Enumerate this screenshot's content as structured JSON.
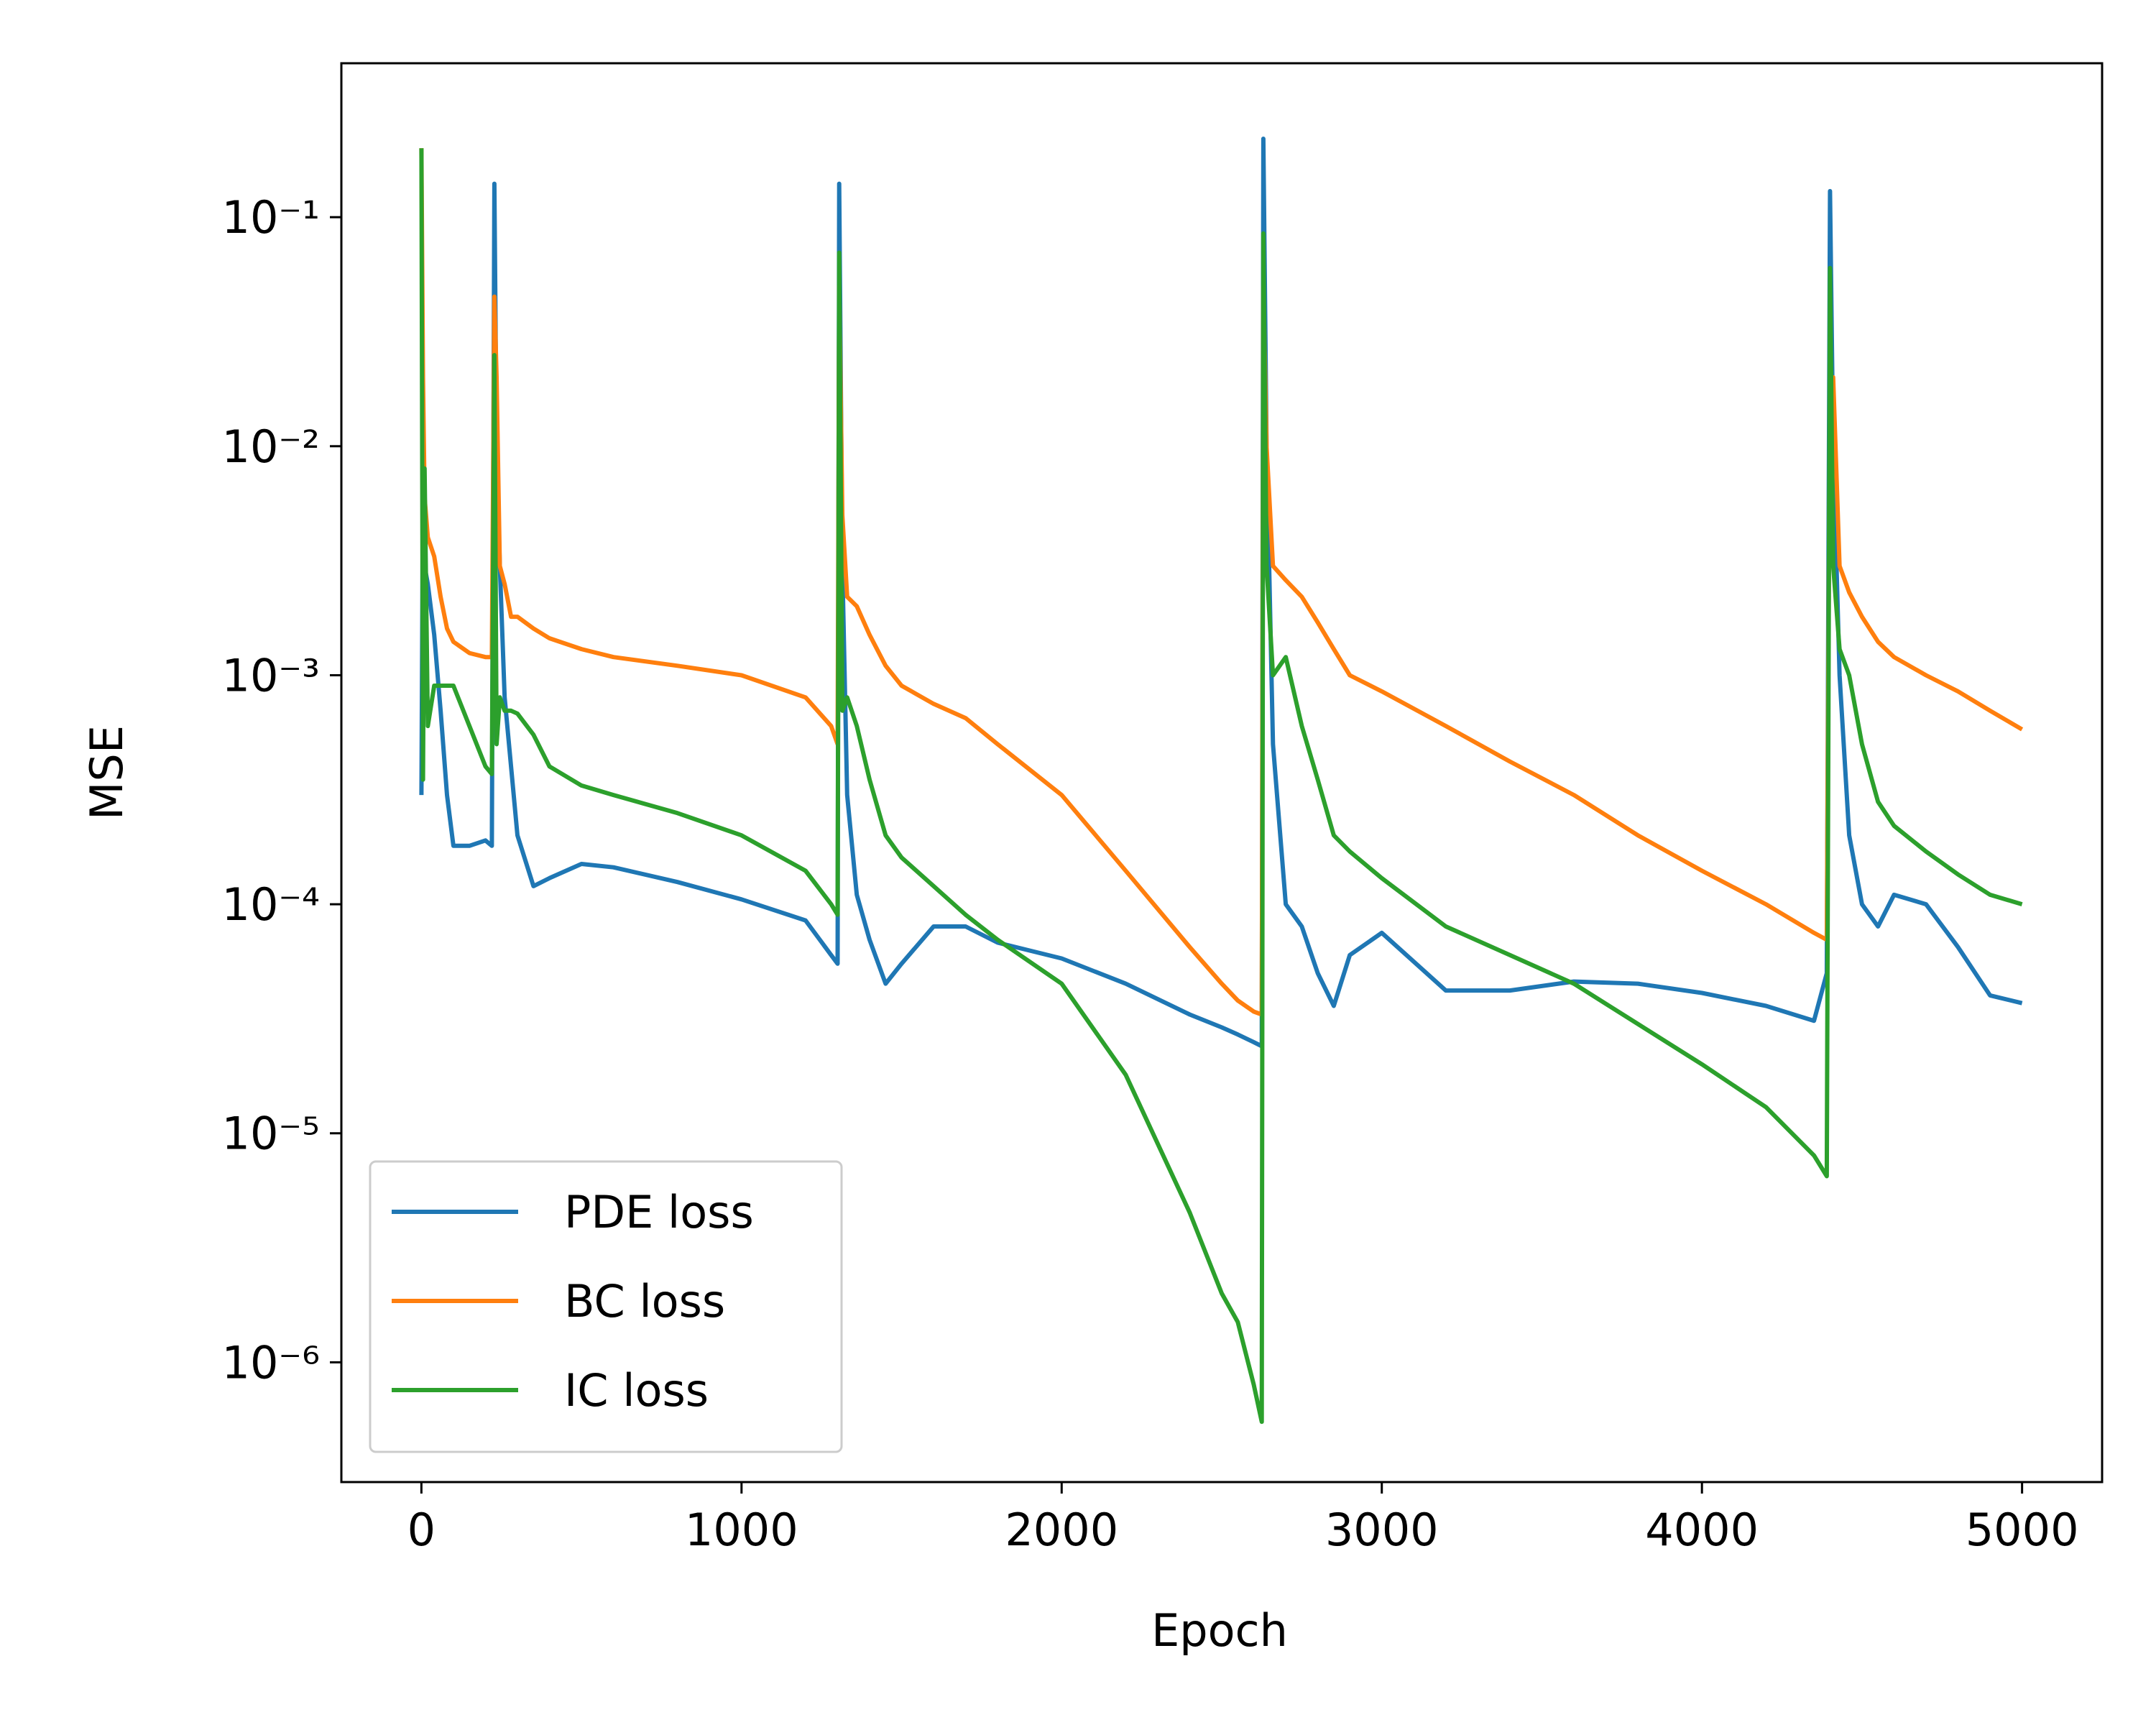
{
  "chart_data": {
    "type": "line",
    "xlabel": "Epoch",
    "ylabel": "MSE",
    "log_y": true,
    "legend": "lower left",
    "xlim": [
      -250,
      5250
    ],
    "ylim": [
      3e-07,
      0.47
    ],
    "xticks": [
      0,
      1000,
      2000,
      3000,
      4000,
      5000
    ],
    "yticks": [
      {
        "value": 1e-06,
        "label": "10⁻⁶"
      },
      {
        "value": 1e-05,
        "label": "10⁻⁵"
      },
      {
        "value": 0.0001,
        "label": "10⁻⁴"
      },
      {
        "value": 0.001,
        "label": "10⁻³"
      },
      {
        "value": 0.01,
        "label": "10⁻²"
      },
      {
        "value": 0.1,
        "label": "10⁻¹"
      }
    ],
    "x": [
      0,
      5,
      10,
      20,
      40,
      60,
      80,
      100,
      150,
      200,
      220,
      228,
      235,
      245,
      260,
      280,
      300,
      350,
      400,
      500,
      600,
      800,
      1000,
      1200,
      1280,
      1300,
      1305,
      1315,
      1330,
      1360,
      1400,
      1450,
      1500,
      1600,
      1700,
      1800,
      2000,
      2200,
      2400,
      2500,
      2550,
      2600,
      2625,
      2630,
      2640,
      2660,
      2700,
      2750,
      2800,
      2850,
      2900,
      3000,
      3200,
      3400,
      3600,
      3800,
      4000,
      4200,
      4350,
      4390,
      4400,
      4410,
      4430,
      4460,
      4500,
      4550,
      4600,
      4700,
      4800,
      4900,
      5000
    ],
    "series": [
      {
        "name": "PDE loss",
        "color": "#1f77b4",
        "values": [
          0.0003,
          0.008,
          0.003,
          0.0025,
          0.0015,
          0.0007,
          0.0003,
          0.00018,
          0.00018,
          0.00019,
          0.00018,
          0.14,
          0.01,
          0.003,
          0.0008,
          0.0004,
          0.0002,
          0.00012,
          0.00013,
          0.00015,
          0.000145,
          0.000125,
          0.000105,
          8.5e-05,
          6e-05,
          5.5e-05,
          0.14,
          0.003,
          0.0003,
          0.00011,
          7e-05,
          4.5e-05,
          5.5e-05,
          8e-05,
          8e-05,
          6.8e-05,
          5.8e-05,
          4.5e-05,
          3.3e-05,
          2.9e-05,
          2.7e-05,
          2.5e-05,
          2.4e-05,
          0.22,
          0.01,
          0.0005,
          0.0001,
          8e-05,
          5e-05,
          3.6e-05,
          6e-05,
          7.5e-05,
          4.2e-05,
          4.2e-05,
          4.6e-05,
          4.5e-05,
          4.1e-05,
          3.6e-05,
          3.1e-05,
          5e-05,
          0.13,
          0.01,
          0.001,
          0.0002,
          0.0001,
          8e-05,
          0.00011,
          0.0001,
          6.5e-05,
          4e-05,
          3.7e-05
        ]
      },
      {
        "name": "BC loss",
        "color": "#ff7f0e",
        "values": [
          0.2,
          0.02,
          0.006,
          0.004,
          0.0033,
          0.0022,
          0.0016,
          0.0014,
          0.00125,
          0.0012,
          0.0012,
          0.045,
          0.02,
          0.003,
          0.0025,
          0.0018,
          0.0018,
          0.0016,
          0.00145,
          0.0013,
          0.0012,
          0.0011,
          0.001,
          0.0008,
          0.0006,
          0.0005,
          0.05,
          0.005,
          0.0022,
          0.002,
          0.0015,
          0.0011,
          0.0009,
          0.00075,
          0.00065,
          0.0005,
          0.0003,
          0.00014,
          6.5e-05,
          4.5e-05,
          3.8e-05,
          3.4e-05,
          3.3e-05,
          0.05,
          0.01,
          0.003,
          0.0026,
          0.0022,
          0.0017,
          0.0013,
          0.001,
          0.00085,
          0.0006,
          0.00042,
          0.0003,
          0.0002,
          0.00014,
          0.0001,
          7.5e-05,
          7e-05,
          0.02,
          0.02,
          0.003,
          0.0023,
          0.0018,
          0.0014,
          0.0012,
          0.001,
          0.00085,
          0.0007,
          0.00058
        ]
      },
      {
        "name": "IC loss",
        "color": "#2ca02c",
        "values": [
          0.2,
          0.00035,
          0.008,
          0.0006,
          0.0009,
          0.0009,
          0.0009,
          0.0009,
          0.0006,
          0.0004,
          0.00037,
          0.025,
          0.0005,
          0.0008,
          0.0007,
          0.0007,
          0.00068,
          0.00055,
          0.0004,
          0.00033,
          0.0003,
          0.00025,
          0.0002,
          0.00014,
          0.0001,
          9e-05,
          0.07,
          0.0007,
          0.0008,
          0.0006,
          0.00035,
          0.0002,
          0.00016,
          0.00012,
          9e-05,
          7e-05,
          4.5e-05,
          1.8e-05,
          4.5e-06,
          2e-06,
          1.5e-06,
          8e-07,
          5.5e-07,
          0.085,
          0.003,
          0.001,
          0.0012,
          0.0006,
          0.00035,
          0.0002,
          0.00017,
          0.00013,
          8e-05,
          6e-05,
          4.5e-05,
          3e-05,
          2e-05,
          1.3e-05,
          8e-06,
          6.5e-06,
          0.06,
          0.003,
          0.0013,
          0.001,
          0.0005,
          0.00028,
          0.00022,
          0.00017,
          0.000135,
          0.00011,
          0.0001
        ]
      }
    ]
  }
}
